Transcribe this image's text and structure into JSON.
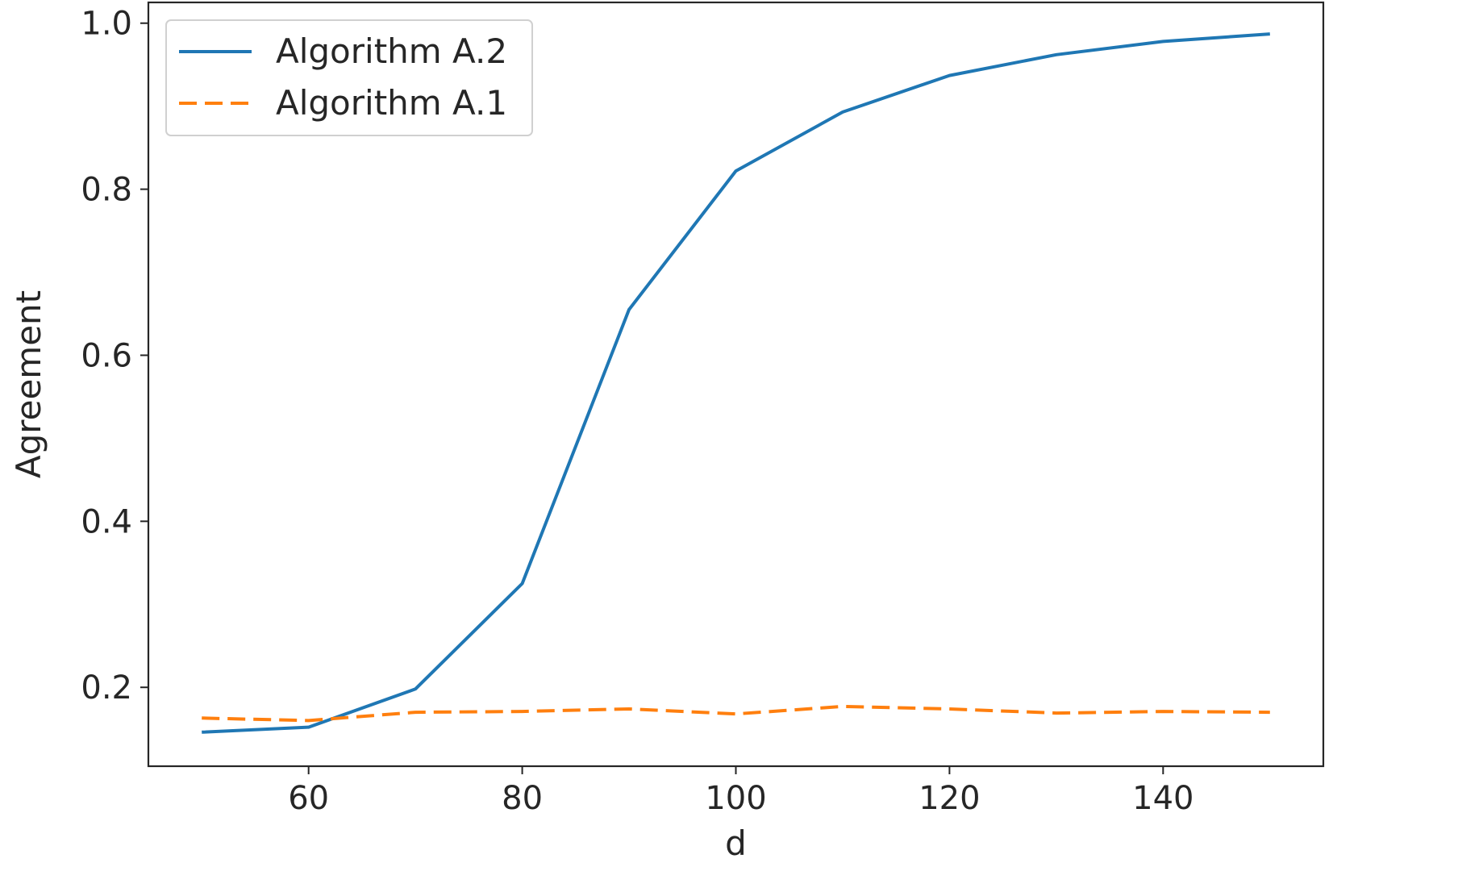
{
  "chart_data": {
    "type": "line",
    "title": "",
    "xlabel": "d",
    "ylabel": "Agreement",
    "xlim": [
      45,
      155
    ],
    "ylim": [
      0.105,
      1.025
    ],
    "xticks": [
      60,
      80,
      100,
      120,
      140
    ],
    "yticks": [
      0.2,
      0.4,
      0.6,
      0.8,
      1.0
    ],
    "xtick_labels": [
      "60",
      "80",
      "100",
      "120",
      "140"
    ],
    "ytick_labels": [
      "0.2",
      "0.4",
      "0.6",
      "0.8",
      "1.0"
    ],
    "grid": false,
    "legend_position": "top-left",
    "x": [
      50,
      60,
      70,
      80,
      90,
      100,
      110,
      120,
      130,
      140,
      150
    ],
    "series": [
      {
        "name": "Algorithm A.2",
        "color": "#1f77b4",
        "style": "solid",
        "values": [
          0.146,
          0.152,
          0.198,
          0.325,
          0.655,
          0.822,
          0.893,
          0.937,
          0.962,
          0.978,
          0.987
        ]
      },
      {
        "name": "Algorithm A.1",
        "color": "#ff7f0e",
        "style": "dashed",
        "values": [
          0.163,
          0.16,
          0.17,
          0.171,
          0.174,
          0.168,
          0.177,
          0.174,
          0.169,
          0.171,
          0.17
        ]
      }
    ]
  }
}
